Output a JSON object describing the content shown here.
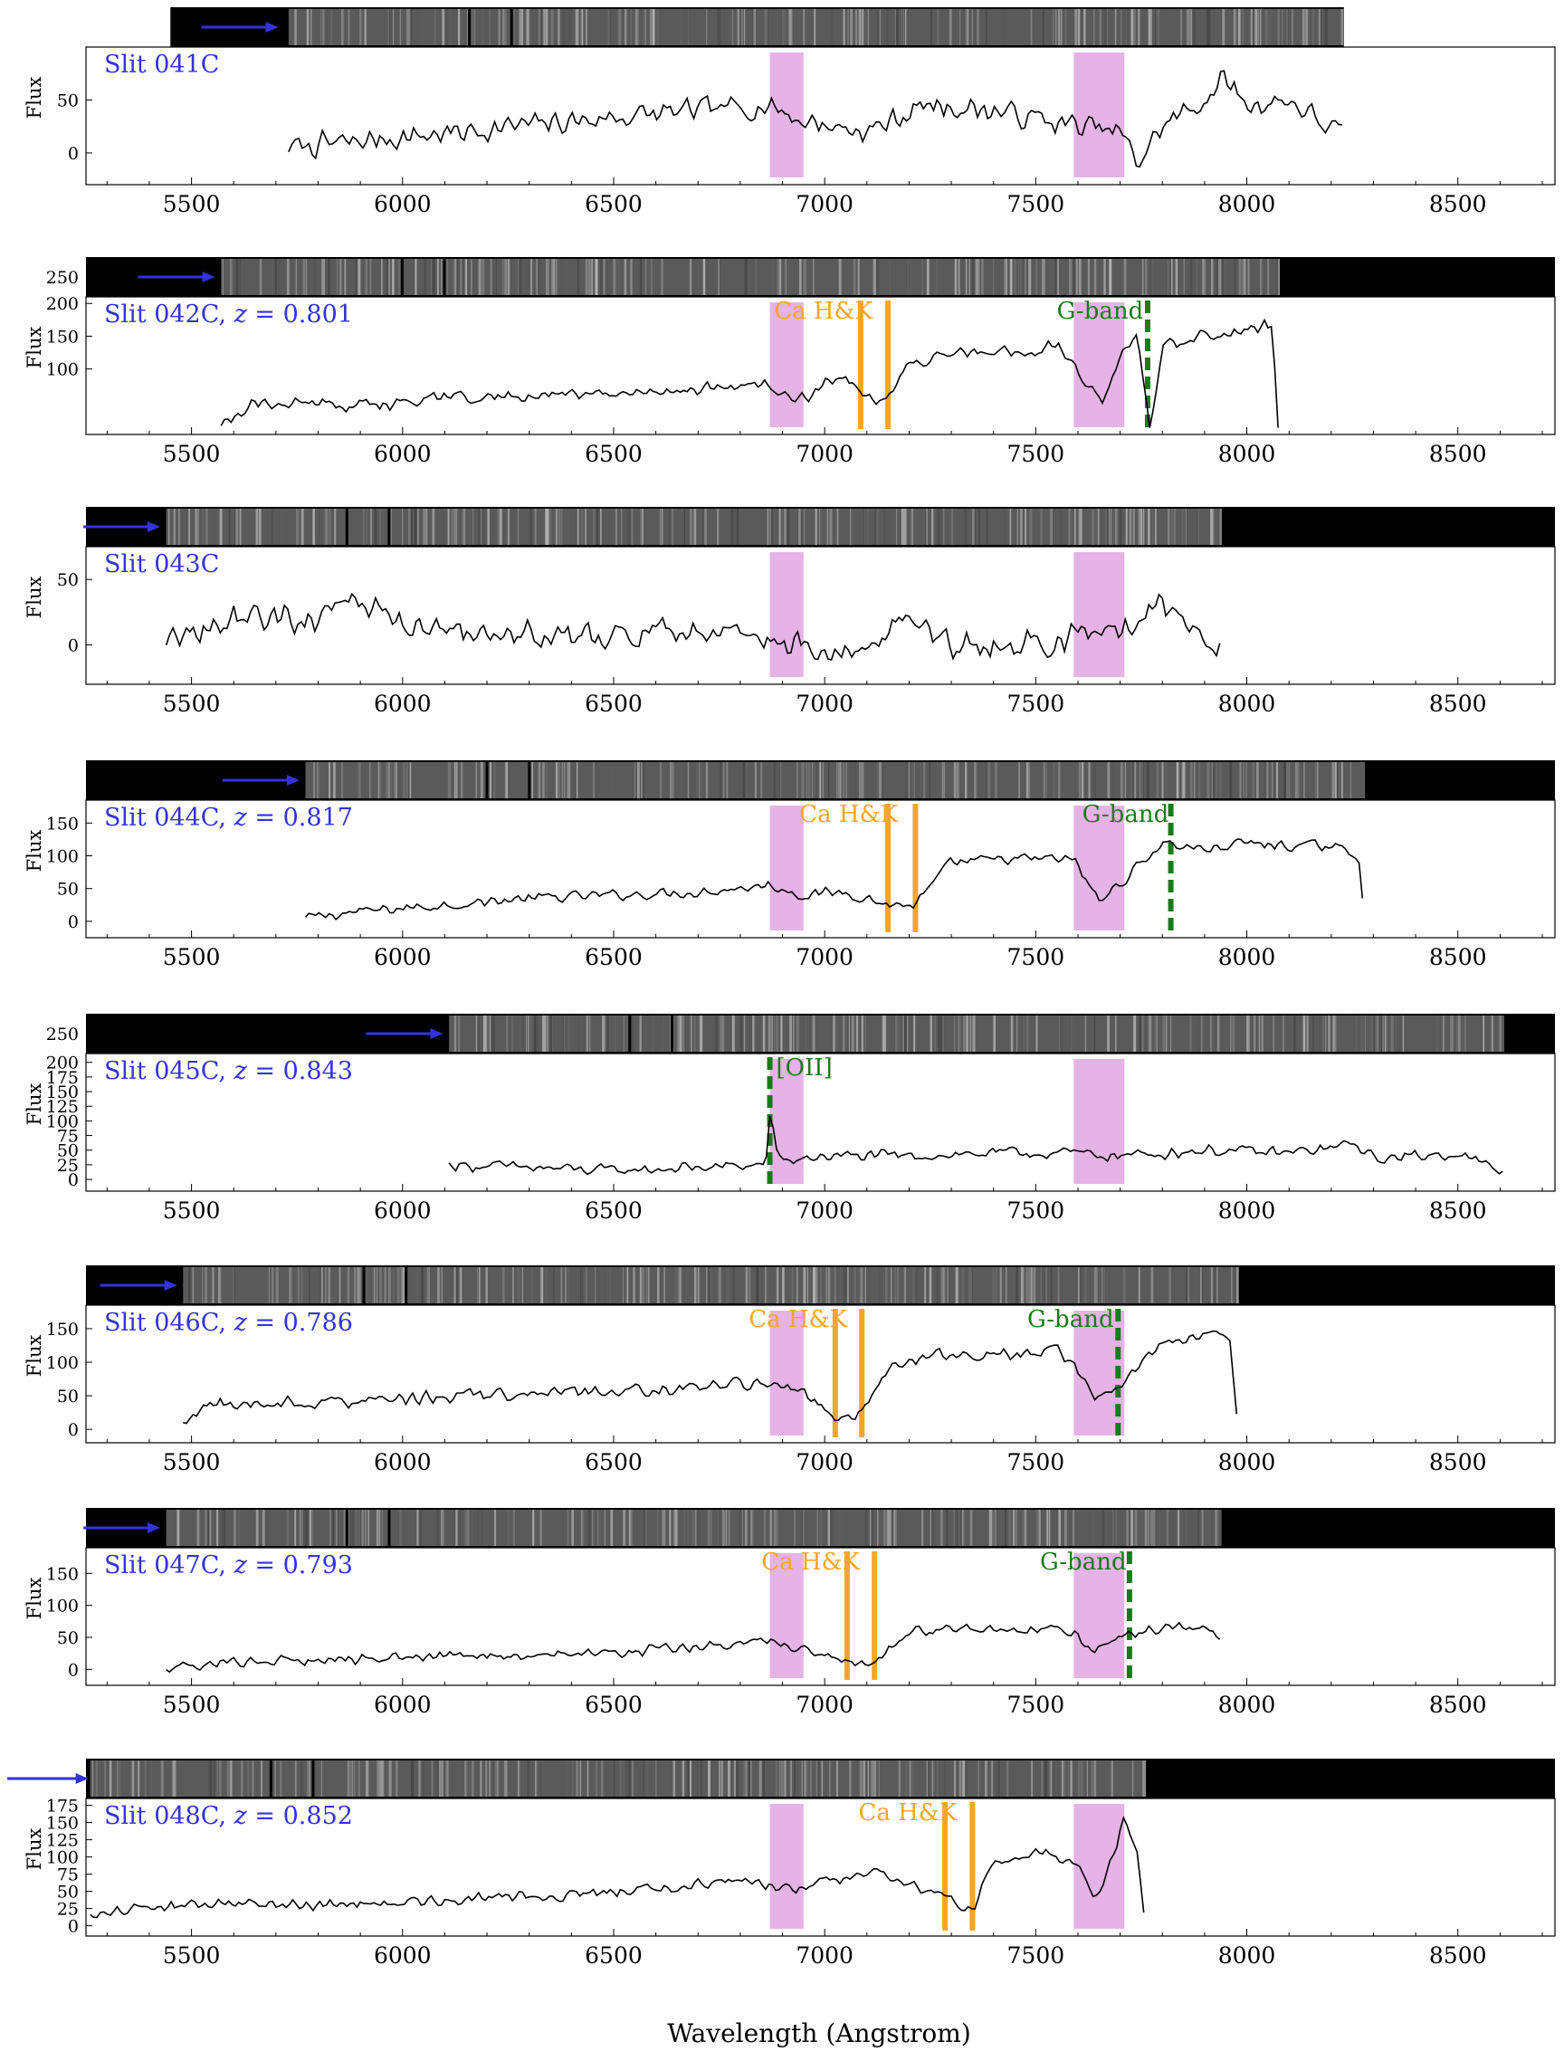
{
  "figure": {
    "xlabel": "Wavelength (Angstrom)",
    "ylabel": "Flux",
    "xticks": [
      5500,
      6000,
      6500,
      7000,
      7500,
      8000,
      8500
    ],
    "colors": {
      "spectrum": "#000000",
      "telluric_band": "#e6b3e6",
      "absorption_line": "#f5a623",
      "gband_line": "#1a7a1a",
      "slit_label": "#3333dd",
      "arrow": "#3333dd",
      "strip_background": "#000000"
    }
  },
  "chart_data": [
    {
      "type": "line",
      "slit_label": "Slit 041C",
      "x_range": [
        5450,
        8230
      ],
      "xlim": [
        5250,
        8730
      ],
      "ylim": [
        -30,
        100
      ],
      "yticks": [
        0,
        50
      ],
      "trace_range": [
        5730,
        8230
      ],
      "strip_range": [
        5730,
        8230
      ],
      "arrow_tip": 5710,
      "telluric_bands": [
        [
          6870,
          6950
        ],
        [
          7590,
          7710
        ]
      ],
      "line_marks": [],
      "line_labels": [],
      "x": [
        5730,
        5880,
        6000,
        6150,
        6260,
        6400,
        6550,
        6700,
        6870,
        6950,
        7100,
        7240,
        7400,
        7600,
        7700,
        7740,
        7800,
        7900,
        7950,
        8000,
        8100,
        8230
      ],
      "y": [
        5,
        10,
        15,
        20,
        25,
        30,
        35,
        40,
        45,
        30,
        20,
        45,
        40,
        25,
        20,
        -10,
        25,
        50,
        70,
        45,
        50,
        15
      ],
      "noise_amp": 14
    },
    {
      "type": "line",
      "slit_label": "Slit 042C, z = 0.801",
      "slit_name": "Slit 042C",
      "redshift": "z = 0.801",
      "x_range": [
        5250,
        8730
      ],
      "xlim": [
        5250,
        8730
      ],
      "ylim": [
        0,
        210
      ],
      "yticks": [
        100,
        150,
        200
      ],
      "strip_ticks": [
        250
      ],
      "trace_range": [
        5570,
        8075
      ],
      "strip_range": [
        5570,
        8075
      ],
      "arrow_tip": 5560,
      "telluric_bands": [
        [
          6870,
          6950
        ],
        [
          7590,
          7710
        ]
      ],
      "line_marks": [
        {
          "x": 7085,
          "style": "solid",
          "color_key": "absorption_line"
        },
        {
          "x": 7150,
          "style": "solid",
          "color_key": "absorption_line"
        },
        {
          "x": 7765,
          "style": "dashed",
          "color_key": "gband_line"
        }
      ],
      "line_labels": [
        {
          "text": "Ca H&K",
          "x": 6880,
          "color_key": "absorption_line"
        },
        {
          "text": "G-band",
          "x": 7550,
          "color_key": "gband_line"
        }
      ],
      "x": [
        5570,
        5650,
        5800,
        6000,
        6100,
        6300,
        6500,
        6700,
        6870,
        6950,
        7050,
        7090,
        7150,
        7200,
        7300,
        7450,
        7550,
        7600,
        7660,
        7700,
        7740,
        7770,
        7800,
        7900,
        8000,
        8060,
        8075
      ],
      "y": [
        15,
        50,
        45,
        45,
        55,
        60,
        60,
        70,
        75,
        55,
        95,
        50,
        50,
        110,
        125,
        125,
        135,
        95,
        45,
        120,
        145,
        10,
        135,
        150,
        160,
        165,
        5
      ],
      "noise_amp": 12
    },
    {
      "type": "line",
      "slit_label": "Slit 043C",
      "x_range": [
        5250,
        8730
      ],
      "xlim": [
        5250,
        8730
      ],
      "ylim": [
        -30,
        75
      ],
      "yticks": [
        0,
        50
      ],
      "trace_range": [
        5440,
        7940
      ],
      "strip_range": [
        5440,
        7940
      ],
      "arrow_tip": 5430,
      "telluric_bands": [
        [
          6870,
          6950
        ],
        [
          7590,
          7710
        ]
      ],
      "line_marks": [],
      "line_labels": [],
      "x": [
        5440,
        5600,
        5800,
        5890,
        6000,
        6200,
        6400,
        6600,
        6800,
        6870,
        7000,
        7150,
        7200,
        7300,
        7500,
        7600,
        7700,
        7800,
        7900,
        7940
      ],
      "y": [
        0,
        20,
        20,
        40,
        15,
        10,
        5,
        10,
        10,
        5,
        -5,
        5,
        25,
        0,
        0,
        5,
        10,
        30,
        10,
        0
      ],
      "noise_amp": 13
    },
    {
      "type": "line",
      "slit_label": "Slit 044C, z = 0.817",
      "slit_name": "Slit 044C",
      "redshift": "z = 0.817",
      "x_range": [
        5250,
        8730
      ],
      "xlim": [
        5250,
        8730
      ],
      "ylim": [
        -25,
        185
      ],
      "yticks": [
        0,
        50,
        100,
        150
      ],
      "trace_range": [
        5770,
        8280
      ],
      "strip_range": [
        5770,
        8280
      ],
      "arrow_tip": 5760,
      "telluric_bands": [
        [
          6870,
          6950
        ],
        [
          7590,
          7710
        ]
      ],
      "line_marks": [
        {
          "x": 7150,
          "style": "solid",
          "color_key": "absorption_line"
        },
        {
          "x": 7215,
          "style": "solid",
          "color_key": "absorption_line"
        },
        {
          "x": 7820,
          "style": "dashed",
          "color_key": "gband_line"
        }
      ],
      "line_labels": [
        {
          "text": "Ca H&K",
          "x": 6940,
          "color_key": "absorption_line"
        },
        {
          "text": "G-band",
          "x": 7610,
          "color_key": "gband_line"
        }
      ],
      "x": [
        5770,
        5900,
        6100,
        6300,
        6500,
        6700,
        6870,
        6950,
        7050,
        7150,
        7215,
        7300,
        7450,
        7590,
        7650,
        7720,
        7800,
        7900,
        8000,
        8100,
        8200,
        8265,
        8280
      ],
      "y": [
        5,
        15,
        25,
        35,
        40,
        45,
        55,
        40,
        45,
        25,
        25,
        90,
        95,
        95,
        30,
        70,
        120,
        110,
        120,
        115,
        115,
        100,
        0
      ],
      "noise_amp": 10
    },
    {
      "type": "line",
      "slit_label": "Slit 045C, z = 0.843",
      "slit_name": "Slit 045C",
      "redshift": "z = 0.843",
      "x_range": [
        5250,
        8730
      ],
      "xlim": [
        5250,
        8730
      ],
      "ylim": [
        -20,
        215
      ],
      "yticks": [
        0,
        25,
        50,
        75,
        100,
        125,
        150,
        175,
        200
      ],
      "strip_ticks": [
        250
      ],
      "trace_range": [
        6110,
        8610
      ],
      "strip_range": [
        6110,
        8610
      ],
      "arrow_tip": 6100,
      "telluric_bands": [
        [
          6870,
          6950
        ],
        [
          7590,
          7710
        ]
      ],
      "line_marks": [
        {
          "x": 6870,
          "style": "dashed",
          "color_key": "gband_line"
        }
      ],
      "line_labels": [
        {
          "text": "[OII]",
          "x": 6885,
          "color_key": "gband_line"
        }
      ],
      "x": [
        6110,
        6300,
        6500,
        6700,
        6860,
        6872,
        6890,
        7000,
        7200,
        7400,
        7600,
        7700,
        7900,
        8100,
        8260,
        8300,
        8500,
        8610
      ],
      "y": [
        25,
        20,
        15,
        20,
        25,
        120,
        30,
        40,
        40,
        45,
        45,
        40,
        50,
        45,
        60,
        35,
        45,
        10
      ],
      "noise_amp": 12
    },
    {
      "type": "line",
      "slit_label": "Slit 046C, z = 0.786",
      "slit_name": "Slit 046C",
      "redshift": "z = 0.786",
      "x_range": [
        5250,
        8730
      ],
      "xlim": [
        5250,
        8730
      ],
      "ylim": [
        -20,
        185
      ],
      "yticks": [
        0,
        50,
        100,
        150
      ],
      "trace_range": [
        5480,
        7980
      ],
      "strip_range": [
        5480,
        7980
      ],
      "arrow_tip": 5470,
      "telluric_bands": [
        [
          6870,
          6950
        ],
        [
          7590,
          7710
        ]
      ],
      "line_marks": [
        {
          "x": 7025,
          "style": "solid",
          "color_key": "absorption_line"
        },
        {
          "x": 7088,
          "style": "solid",
          "color_key": "absorption_line"
        },
        {
          "x": 7695,
          "style": "dashed",
          "color_key": "gband_line"
        }
      ],
      "line_labels": [
        {
          "text": "Ca H&K",
          "x": 6820,
          "color_key": "absorption_line"
        },
        {
          "text": "G-band",
          "x": 7480,
          "color_key": "gband_line"
        }
      ],
      "x": [
        5480,
        5520,
        5700,
        5900,
        6100,
        6300,
        6500,
        6700,
        6870,
        6950,
        7025,
        7090,
        7150,
        7250,
        7400,
        7550,
        7590,
        7640,
        7700,
        7800,
        7900,
        7960,
        7980
      ],
      "y": [
        5,
        35,
        40,
        40,
        50,
        55,
        55,
        65,
        70,
        60,
        15,
        20,
        95,
        110,
        110,
        120,
        95,
        40,
        65,
        130,
        140,
        130,
        0
      ],
      "noise_amp": 12
    },
    {
      "type": "line",
      "slit_label": "Slit 047C, z = 0.793",
      "slit_name": "Slit 047C",
      "redshift": "z = 0.793",
      "x_range": [
        5250,
        8730
      ],
      "xlim": [
        5250,
        8730
      ],
      "ylim": [
        -25,
        190
      ],
      "yticks": [
        0,
        50,
        100,
        150
      ],
      "trace_range": [
        5440,
        7940
      ],
      "strip_range": [
        5440,
        7940
      ],
      "arrow_tip": 5430,
      "telluric_bands": [
        [
          6870,
          6950
        ],
        [
          7590,
          7710
        ]
      ],
      "line_marks": [
        {
          "x": 7053,
          "style": "solid",
          "color_key": "absorption_line"
        },
        {
          "x": 7118,
          "style": "solid",
          "color_key": "absorption_line"
        },
        {
          "x": 7722,
          "style": "dashed",
          "color_key": "gband_line"
        }
      ],
      "line_labels": [
        {
          "text": "Ca H&K",
          "x": 6850,
          "color_key": "absorption_line"
        },
        {
          "text": "G-band",
          "x": 7510,
          "color_key": "gband_line"
        }
      ],
      "x": [
        5440,
        5600,
        5800,
        6000,
        6200,
        6400,
        6600,
        6800,
        6870,
        6950,
        7053,
        7118,
        7200,
        7400,
        7590,
        7640,
        7700,
        7800,
        7900,
        7940
      ],
      "y": [
        5,
        10,
        15,
        20,
        20,
        25,
        30,
        40,
        45,
        30,
        10,
        5,
        60,
        65,
        60,
        25,
        50,
        65,
        70,
        40
      ],
      "noise_amp": 10
    },
    {
      "type": "line",
      "slit_label": "Slit 048C, z = 0.852",
      "slit_name": "Slit 048C",
      "redshift": "z = 0.852",
      "x_range": [
        5250,
        8730
      ],
      "xlim": [
        5250,
        8730
      ],
      "ylim": [
        -15,
        185
      ],
      "yticks": [
        0,
        25,
        50,
        75,
        100,
        125,
        150,
        175
      ],
      "trace_range": [
        5260,
        7760
      ],
      "strip_range": [
        5260,
        7760
      ],
      "arrow_tip": 5260,
      "arrow_offscreen": true,
      "telluric_bands": [
        [
          6870,
          6950
        ],
        [
          7590,
          7710
        ]
      ],
      "line_marks": [
        {
          "x": 7285,
          "style": "solid",
          "color_key": "absorption_line"
        },
        {
          "x": 7350,
          "style": "solid",
          "color_key": "absorption_line"
        }
      ],
      "line_labels": [
        {
          "text": "Ca H&K",
          "x": 7080,
          "color_key": "absorption_line"
        }
      ],
      "x": [
        5260,
        5400,
        5600,
        5800,
        6000,
        6200,
        6400,
        6600,
        6800,
        6870,
        6950,
        7100,
        7250,
        7300,
        7350,
        7400,
        7500,
        7590,
        7640,
        7680,
        7710,
        7740,
        7760
      ],
      "y": [
        20,
        25,
        35,
        30,
        35,
        40,
        45,
        55,
        65,
        60,
        55,
        80,
        50,
        35,
        20,
        95,
        110,
        95,
        35,
        95,
        160,
        100,
        0
      ],
      "noise_amp": 10
    }
  ]
}
